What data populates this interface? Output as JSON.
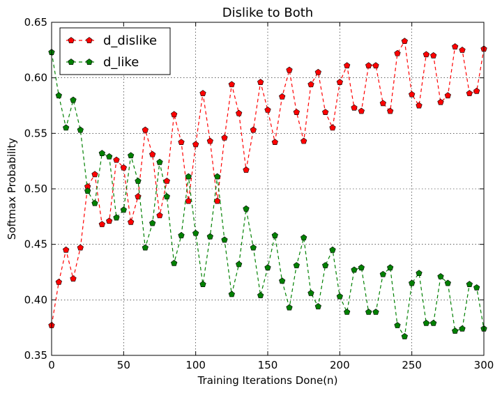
{
  "chart_data": {
    "type": "line",
    "title": "Dislike to Both",
    "xlabel": "Training Iterations Done(n)",
    "ylabel": "Softmax Probability",
    "xlim": [
      0,
      300
    ],
    "ylim": [
      0.35,
      0.65
    ],
    "xticks": [
      0,
      50,
      100,
      150,
      200,
      250,
      300
    ],
    "yticks": [
      0.35,
      0.4,
      0.45,
      0.5,
      0.55,
      0.6,
      0.65
    ],
    "xtick_labels": [
      "0",
      "50",
      "100",
      "150",
      "200",
      "250",
      "300"
    ],
    "ytick_labels": [
      "0.35",
      "0.40",
      "0.45",
      "0.50",
      "0.55",
      "0.60",
      "0.65"
    ],
    "grid": true,
    "legend_position": "top-left",
    "x": [
      0,
      5,
      10,
      15,
      20,
      25,
      30,
      35,
      40,
      45,
      50,
      55,
      60,
      65,
      70,
      75,
      80,
      85,
      90,
      95,
      100,
      105,
      110,
      115,
      120,
      125,
      130,
      135,
      140,
      145,
      150,
      155,
      160,
      165,
      170,
      175,
      180,
      185,
      190,
      195,
      200,
      205,
      210,
      215,
      220,
      225,
      230,
      235,
      240,
      245,
      250,
      255,
      260,
      265,
      270,
      275,
      280,
      285,
      290,
      295,
      300
    ],
    "series": [
      {
        "name": "d_dislike",
        "color": "#ff0000",
        "marker_color": "#ff0000",
        "values": [
          0.377,
          0.416,
          0.445,
          0.419,
          0.447,
          0.502,
          0.513,
          0.468,
          0.471,
          0.526,
          0.519,
          0.47,
          0.493,
          0.553,
          0.531,
          0.476,
          0.507,
          0.567,
          0.542,
          0.489,
          0.54,
          0.586,
          0.543,
          0.489,
          0.546,
          0.594,
          0.568,
          0.517,
          0.553,
          0.596,
          0.571,
          0.542,
          0.583,
          0.607,
          0.569,
          0.543,
          0.594,
          0.605,
          0.569,
          0.555,
          0.596,
          0.611,
          0.573,
          0.57,
          0.611,
          0.611,
          0.577,
          0.57,
          0.622,
          0.633,
          0.585,
          0.575,
          0.621,
          0.62,
          0.578,
          0.584,
          0.628,
          0.625,
          0.586,
          0.588,
          0.626
        ]
      },
      {
        "name": "d_like",
        "color": "#008000",
        "marker_color": "#008000",
        "values": [
          0.623,
          0.584,
          0.555,
          0.58,
          0.553,
          0.498,
          0.487,
          0.532,
          0.529,
          0.474,
          0.481,
          0.53,
          0.507,
          0.447,
          0.469,
          0.524,
          0.493,
          0.433,
          0.458,
          0.511,
          0.46,
          0.414,
          0.457,
          0.511,
          0.454,
          0.405,
          0.432,
          0.482,
          0.447,
          0.404,
          0.429,
          0.458,
          0.417,
          0.393,
          0.431,
          0.456,
          0.406,
          0.394,
          0.431,
          0.445,
          0.403,
          0.389,
          0.427,
          0.429,
          0.389,
          0.389,
          0.423,
          0.429,
          0.377,
          0.367,
          0.415,
          0.424,
          0.379,
          0.379,
          0.421,
          0.415,
          0.372,
          0.374,
          0.414,
          0.411,
          0.374
        ]
      }
    ]
  }
}
